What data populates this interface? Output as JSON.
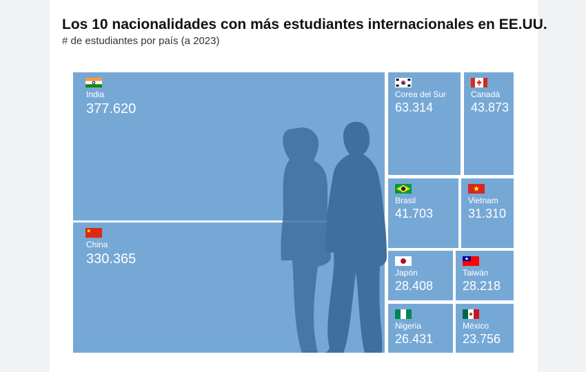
{
  "header": {
    "title": "Los 10 nacionalidades con más estudiantes internacionales en EE.UU.",
    "subtitle": "# de estudiantes por país (a 2023)"
  },
  "colors": {
    "cell": "#76a8d6",
    "gap": "#ffffff",
    "silhouette": "#3e6f9e"
  },
  "chart_data": {
    "type": "treemap",
    "title": "Los 10 nacionalidades con más estudiantes internacionales en EE.UU.",
    "subtitle": "# de estudiantes por país (a 2023)",
    "categories": [
      "India",
      "China",
      "Corea del Sur",
      "Canadá",
      "Brasil",
      "Vietnam",
      "Japón",
      "Taiwán",
      "Nigeria",
      "México"
    ],
    "values": [
      377620,
      330365,
      63314,
      43873,
      41703,
      31310,
      28408,
      28218,
      26431,
      23756
    ],
    "labels": [
      "377.620",
      "330.365",
      "63.314",
      "43.873",
      "41.703",
      "31.310",
      "28.408",
      "28.218",
      "26.431",
      "23.756"
    ],
    "flags": [
      "flag-india-icon",
      "flag-china-icon",
      "flag-south-korea-icon",
      "flag-canada-icon",
      "flag-brazil-icon",
      "flag-vietnam-icon",
      "flag-japan-icon",
      "flag-taiwan-icon",
      "flag-nigeria-icon",
      "flag-mexico-icon"
    ]
  }
}
